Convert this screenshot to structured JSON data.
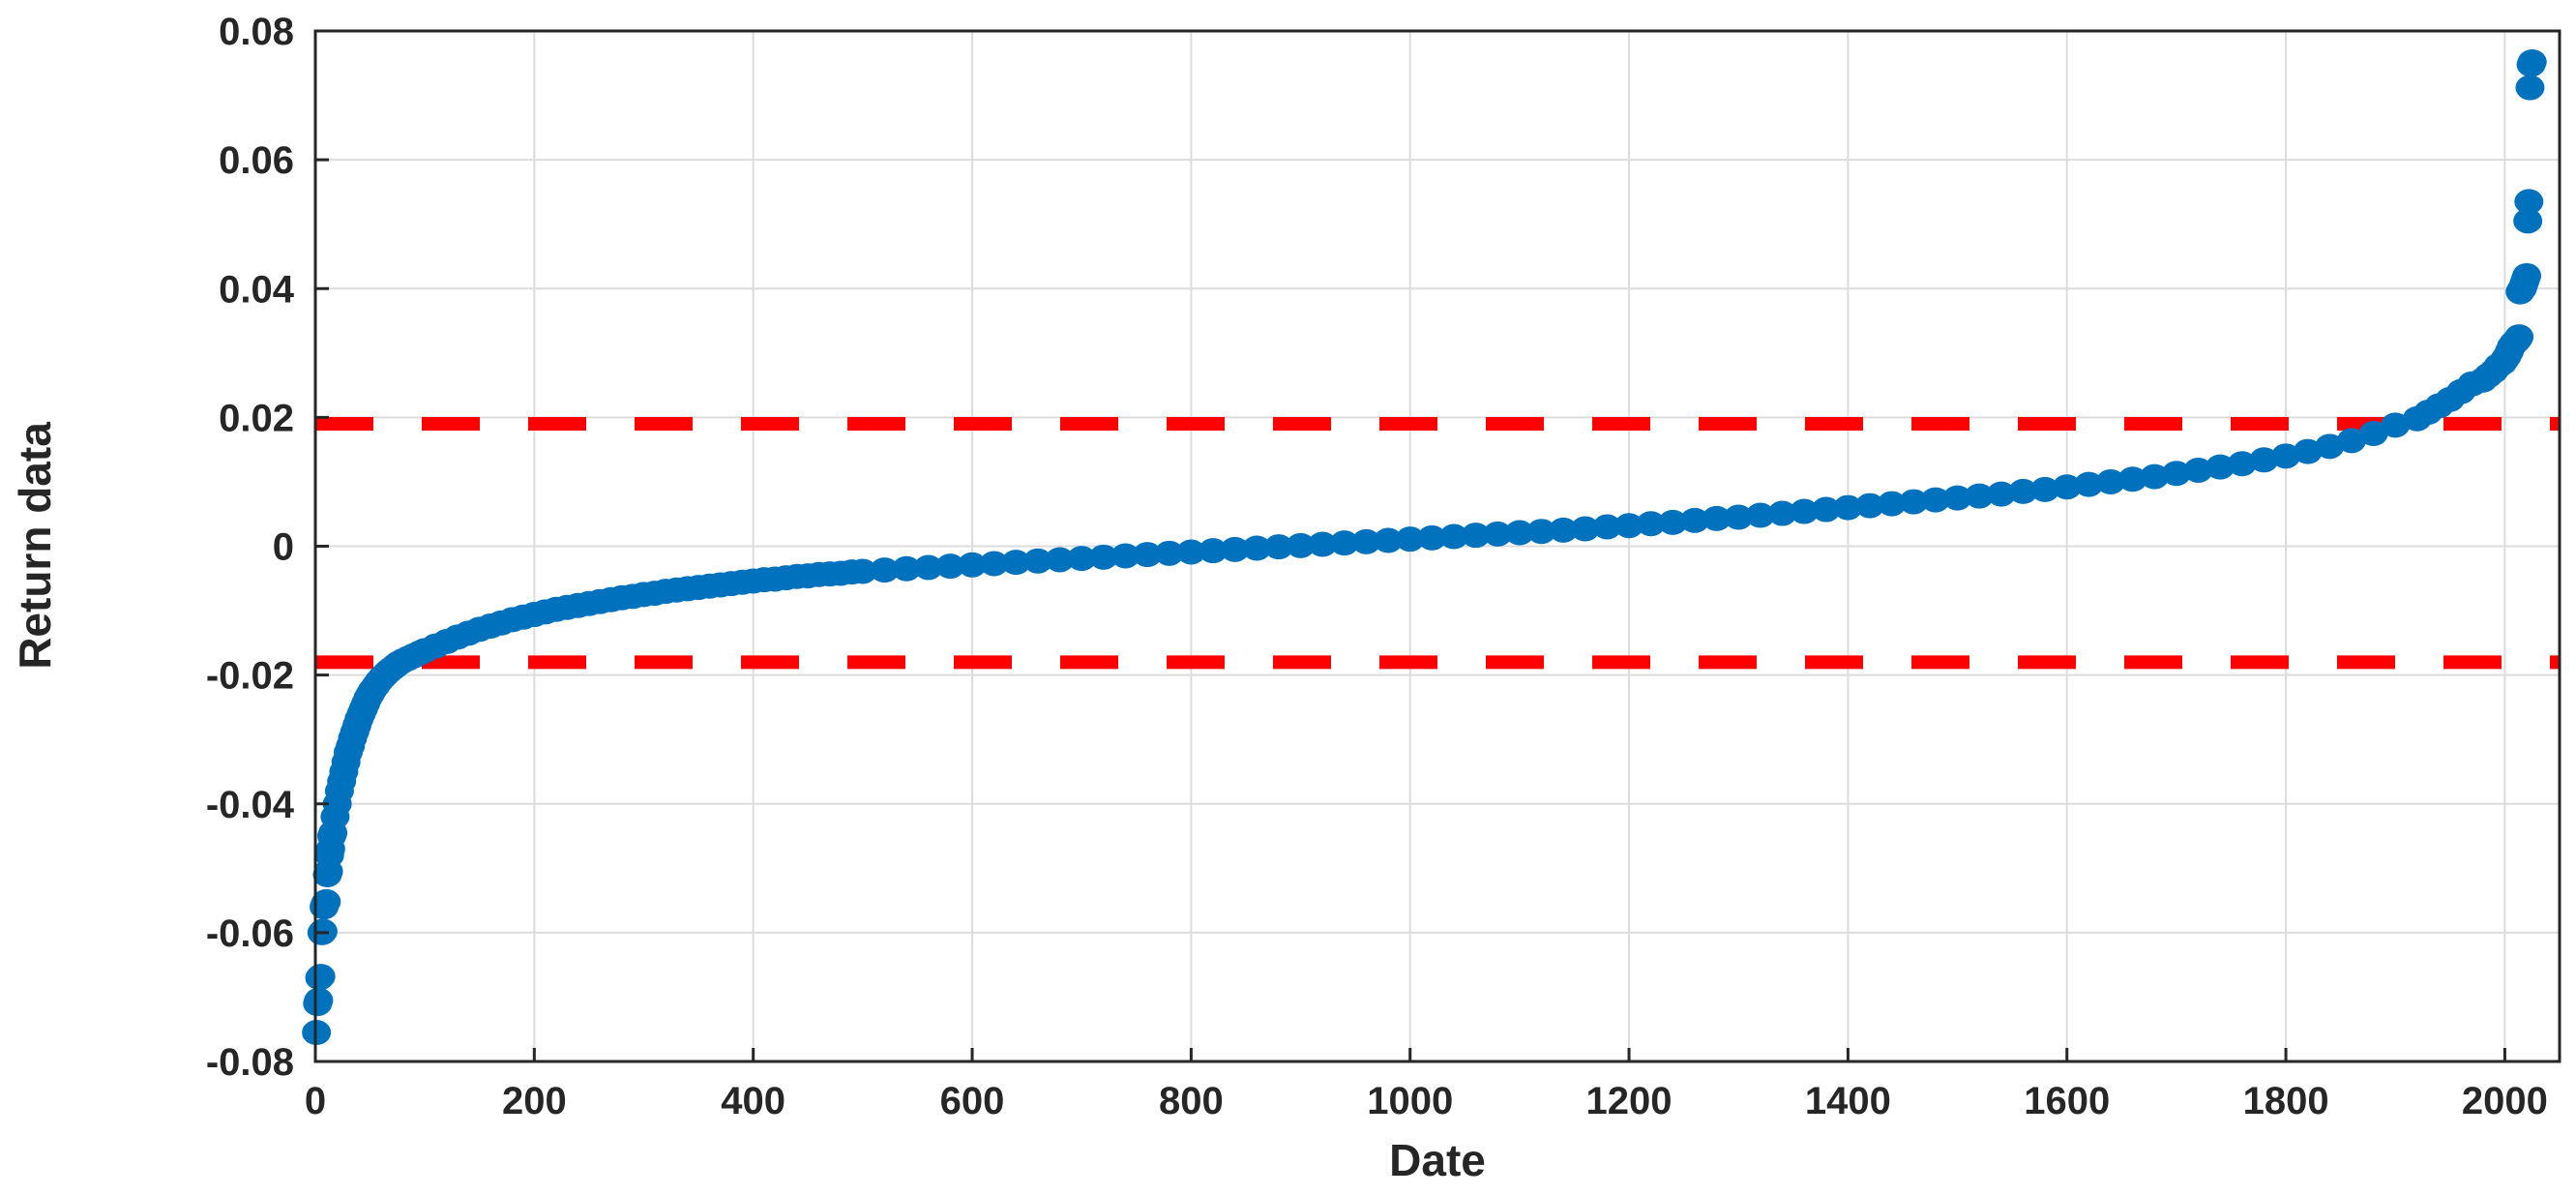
{
  "chart_data": {
    "type": "scatter",
    "title": "",
    "xlabel": "Date",
    "ylabel": "Return data",
    "xlim": [
      0,
      2050
    ],
    "ylim": [
      -0.08,
      0.08
    ],
    "xticks": [
      {
        "value": 0,
        "label": "0"
      },
      {
        "value": 200,
        "label": "200"
      },
      {
        "value": 400,
        "label": "400"
      },
      {
        "value": 600,
        "label": "600"
      },
      {
        "value": 800,
        "label": "800"
      },
      {
        "value": 1000,
        "label": "1000"
      },
      {
        "value": 1200,
        "label": "1200"
      },
      {
        "value": 1400,
        "label": "1400"
      },
      {
        "value": 1600,
        "label": "1600"
      },
      {
        "value": 1800,
        "label": "1800"
      },
      {
        "value": 2000,
        "label": "2000"
      }
    ],
    "yticks": [
      {
        "value": 0.08,
        "label": "0.08"
      },
      {
        "value": 0.06,
        "label": "0.06"
      },
      {
        "value": 0.04,
        "label": "0.04"
      },
      {
        "value": 0.02,
        "label": "0.02"
      },
      {
        "value": 0,
        "label": "0"
      },
      {
        "value": -0.02,
        "label": "-0.02"
      },
      {
        "value": -0.04,
        "label": "-0.04"
      },
      {
        "value": -0.06,
        "label": "-0.06"
      },
      {
        "value": -0.08,
        "label": "-0.08"
      }
    ],
    "grid": true,
    "series": [
      {
        "color": "#0072BD",
        "x": [
          1,
          2,
          3,
          4,
          5,
          6,
          7,
          8,
          9,
          10,
          11,
          12,
          13,
          14,
          15,
          16,
          18,
          20,
          22,
          24,
          26,
          28,
          30,
          32,
          34,
          36,
          38,
          40,
          42,
          44,
          46,
          48,
          50,
          52,
          55,
          58,
          61,
          64,
          67,
          70,
          73,
          76,
          80,
          85,
          90,
          95,
          100,
          110,
          120,
          130,
          140,
          150,
          160,
          170,
          180,
          190,
          200,
          210,
          220,
          230,
          240,
          250,
          260,
          270,
          280,
          290,
          300,
          310,
          320,
          330,
          340,
          350,
          360,
          370,
          380,
          390,
          400,
          410,
          420,
          430,
          440,
          450,
          460,
          470,
          480,
          490,
          500,
          520,
          540,
          560,
          580,
          600,
          620,
          640,
          660,
          680,
          700,
          720,
          740,
          760,
          780,
          800,
          820,
          840,
          860,
          880,
          900,
          920,
          940,
          960,
          980,
          1000,
          1020,
          1040,
          1060,
          1080,
          1100,
          1120,
          1140,
          1160,
          1180,
          1200,
          1220,
          1240,
          1260,
          1280,
          1300,
          1320,
          1340,
          1360,
          1380,
          1400,
          1420,
          1440,
          1460,
          1480,
          1500,
          1520,
          1540,
          1560,
          1580,
          1600,
          1620,
          1640,
          1660,
          1680,
          1700,
          1720,
          1740,
          1760,
          1780,
          1800,
          1820,
          1840,
          1860,
          1880,
          1900,
          1920,
          1930,
          1940,
          1950,
          1960,
          1970,
          1980,
          1985,
          1990,
          1994,
          1998,
          2000,
          2002,
          2004,
          2006,
          2008,
          2010,
          2011,
          2012,
          2013,
          2014,
          2015,
          2016,
          2017,
          2018,
          2019,
          2020,
          2021,
          2022,
          2023,
          2024,
          2025
        ],
        "y": [
          -0.0755,
          -0.071,
          -0.0705,
          -0.067,
          -0.0668,
          -0.06,
          -0.0598,
          -0.056,
          -0.0555,
          -0.0552,
          -0.051,
          -0.0505,
          -0.048,
          -0.047,
          -0.045,
          -0.0445,
          -0.042,
          -0.04,
          -0.038,
          -0.0365,
          -0.035,
          -0.0335,
          -0.032,
          -0.031,
          -0.0298,
          -0.0288,
          -0.0278,
          -0.0268,
          -0.026,
          -0.0252,
          -0.0244,
          -0.0236,
          -0.023,
          -0.0224,
          -0.0217,
          -0.021,
          -0.0204,
          -0.0199,
          -0.0194,
          -0.019,
          -0.0186,
          -0.0182,
          -0.0178,
          -0.0174,
          -0.017,
          -0.0166,
          -0.0162,
          -0.0155,
          -0.0148,
          -0.0141,
          -0.0135,
          -0.0129,
          -0.0124,
          -0.0119,
          -0.0114,
          -0.011,
          -0.0106,
          -0.0102,
          -0.0098,
          -0.0095,
          -0.0092,
          -0.0089,
          -0.0086,
          -0.0083,
          -0.008,
          -0.0078,
          -0.0075,
          -0.0073,
          -0.007,
          -0.0068,
          -0.0066,
          -0.0064,
          -0.0062,
          -0.006,
          -0.0058,
          -0.0056,
          -0.0054,
          -0.0052,
          -0.0051,
          -0.0049,
          -0.0047,
          -0.0046,
          -0.0044,
          -0.0043,
          -0.0042,
          -0.004,
          -0.0039,
          -0.0037,
          -0.0035,
          -0.0033,
          -0.0031,
          -0.0029,
          -0.0027,
          -0.0025,
          -0.0023,
          -0.0021,
          -0.0019,
          -0.0017,
          -0.0015,
          -0.0013,
          -0.0011,
          -0.0009,
          -0.0007,
          -0.0005,
          -0.0003,
          -0.0001,
          0.0001,
          0.0003,
          0.0005,
          0.0007,
          0.0009,
          0.0011,
          0.0013,
          0.0015,
          0.0017,
          0.0019,
          0.0021,
          0.0023,
          0.0025,
          0.0027,
          0.003,
          0.0032,
          0.0035,
          0.0037,
          0.004,
          0.0043,
          0.0045,
          0.0048,
          0.0051,
          0.0054,
          0.0057,
          0.006,
          0.0063,
          0.0066,
          0.0069,
          0.0072,
          0.0075,
          0.0078,
          0.0081,
          0.0085,
          0.0088,
          0.0092,
          0.0096,
          0.01,
          0.0104,
          0.0108,
          0.0113,
          0.0118,
          0.0123,
          0.0128,
          0.0134,
          0.014,
          0.0147,
          0.0155,
          0.0164,
          0.0175,
          0.0188,
          0.0198,
          0.0208,
          0.0218,
          0.0228,
          0.024,
          0.0252,
          0.0258,
          0.0265,
          0.0272,
          0.028,
          0.0285,
          0.029,
          0.0295,
          0.0302,
          0.031,
          0.0315,
          0.0318,
          0.032,
          0.0322,
          0.0325,
          0.0395,
          0.0398,
          0.04,
          0.0405,
          0.041,
          0.0415,
          0.042,
          0.0505,
          0.0535,
          0.0712,
          0.0748,
          0.0752
        ]
      }
    ],
    "reference_lines": [
      {
        "orientation": "horizontal",
        "y": 0.019,
        "color": "#FF0000",
        "style": "dashed"
      },
      {
        "orientation": "horizontal",
        "y": -0.018,
        "color": "#FF0000",
        "style": "dashed"
      }
    ]
  }
}
